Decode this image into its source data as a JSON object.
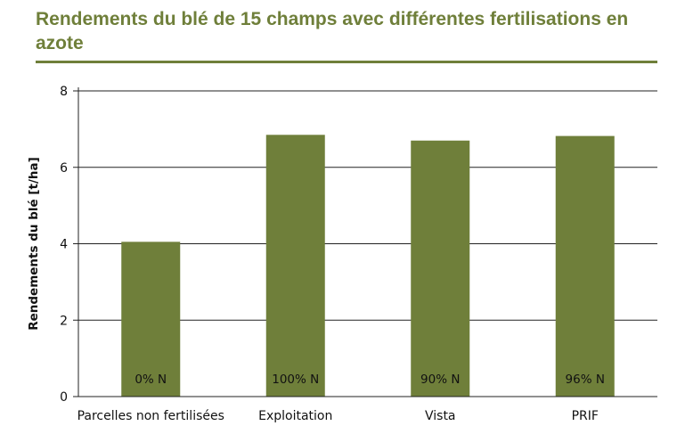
{
  "chart_data": {
    "type": "bar",
    "title": "Rendements du blé de 15 champs avec différentes fertilisations en azote",
    "xlabel": "",
    "ylabel": "Rendements du blé [t/ha]",
    "ylim": [
      0,
      8
    ],
    "yticks": [
      "0",
      "2",
      "4",
      "6",
      "8"
    ],
    "categories": [
      "Parcelles non fertilisées",
      "Exploitation",
      "Vista",
      "PRIF"
    ],
    "values": [
      4.05,
      6.85,
      6.7,
      6.82
    ],
    "bar_labels": [
      "0% N",
      "100% N",
      "90% N",
      "96% N"
    ],
    "bar_color": "#6f7f3a",
    "grid": true
  }
}
